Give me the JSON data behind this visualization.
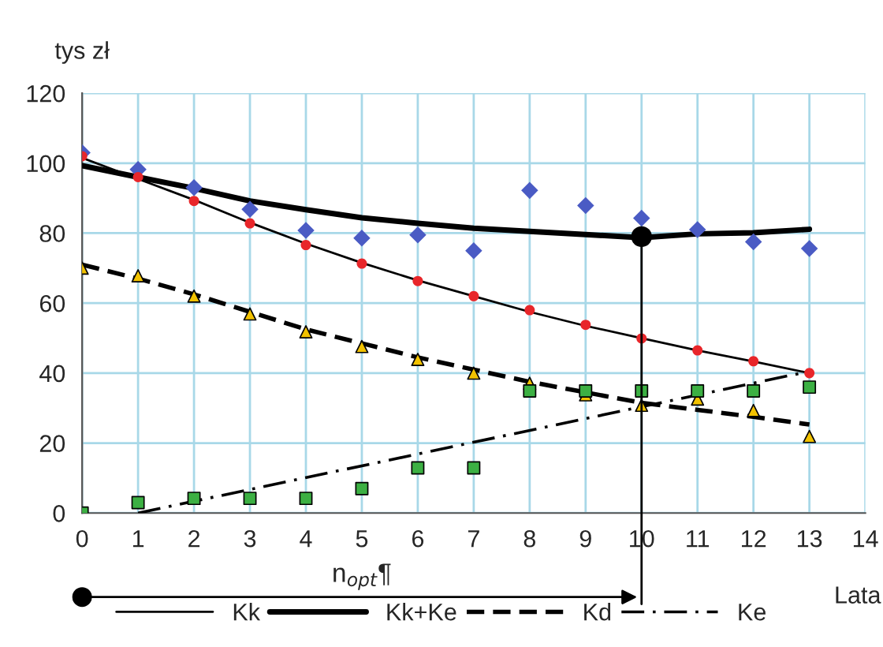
{
  "chart_data": {
    "type": "scatter",
    "xlabel": "Lata",
    "ylabel": "tys zł",
    "x": [
      0,
      1,
      2,
      3,
      4,
      5,
      6,
      7,
      8,
      9,
      10,
      11,
      12,
      13
    ],
    "series": [
      {
        "marker": "diamond",
        "color": "#4a5bc4",
        "values": [
          103,
          98.2,
          93,
          86.8,
          80.8,
          78.6,
          79.5,
          75,
          92.2,
          87.9,
          84.3,
          81,
          77.5,
          75.6
        ]
      },
      {
        "marker": "circle",
        "color": "#e8262a",
        "values": [
          102,
          96,
          89.2,
          82.8,
          76.6,
          71.3,
          66.3,
          62,
          58,
          53.8,
          49.9,
          46.5,
          43.4,
          40
        ]
      },
      {
        "marker": "triangle",
        "color": "#f2c200",
        "values": [
          70,
          67.8,
          62,
          56.9,
          51.8,
          47.6,
          43.9,
          40,
          37.1,
          33.8,
          30.8,
          32.6,
          29.3,
          21.9
        ]
      },
      {
        "marker": "square",
        "color": "#3cb043",
        "values": [
          0,
          3,
          4.2,
          4.2,
          4.2,
          7,
          12.9,
          12.9,
          34.9,
          34.9,
          34.9,
          34.9,
          34.9,
          36
        ]
      },
      {
        "type": "line",
        "name": "Kk",
        "color": "#000000",
        "line_style": "solid",
        "values": [
          101.5,
          95.5,
          89.5,
          83,
          77,
          71.5,
          66.5,
          62,
          57.5,
          53.5,
          50,
          46.5,
          43.3,
          40
        ]
      },
      {
        "type": "line",
        "name": "Kk+Ke",
        "color": "#000000",
        "line_style": "solid",
        "values": [
          99.3,
          96,
          92.8,
          89.2,
          86.7,
          84.4,
          82.8,
          81.4,
          80.5,
          79.6,
          78.7,
          79.8,
          80.1,
          81.1
        ]
      },
      {
        "type": "line",
        "name": "Kd",
        "color": "#000000",
        "line_style": "dashed",
        "values": [
          71,
          67,
          62.5,
          57.5,
          52.5,
          48.5,
          44.5,
          41,
          37.5,
          34.5,
          31.5,
          29.5,
          27.5,
          25.3
        ]
      },
      {
        "type": "line",
        "name": "Ke",
        "color": "#000000",
        "line_style": "dashdot",
        "x": [
          1,
          13
        ],
        "values": [
          0,
          40.5
        ]
      },
      {
        "marker": "circle",
        "color": "#000000",
        "x": [
          10
        ],
        "values": [
          79
        ]
      }
    ],
    "ref_lines": [
      {
        "axis": "x",
        "value": 10,
        "color": "#000000"
      }
    ],
    "annotations": [
      "n$_{opt}$¶"
    ],
    "xlim": [
      0,
      14
    ],
    "xticks": [
      0,
      1,
      2,
      3,
      4,
      5,
      6,
      7,
      8,
      9,
      10,
      11,
      12,
      13,
      14
    ],
    "ylim": [
      0,
      120
    ],
    "yticks": [
      0,
      20,
      40,
      60,
      80,
      100,
      120
    ],
    "grid": true,
    "legend": "bottom"
  }
}
